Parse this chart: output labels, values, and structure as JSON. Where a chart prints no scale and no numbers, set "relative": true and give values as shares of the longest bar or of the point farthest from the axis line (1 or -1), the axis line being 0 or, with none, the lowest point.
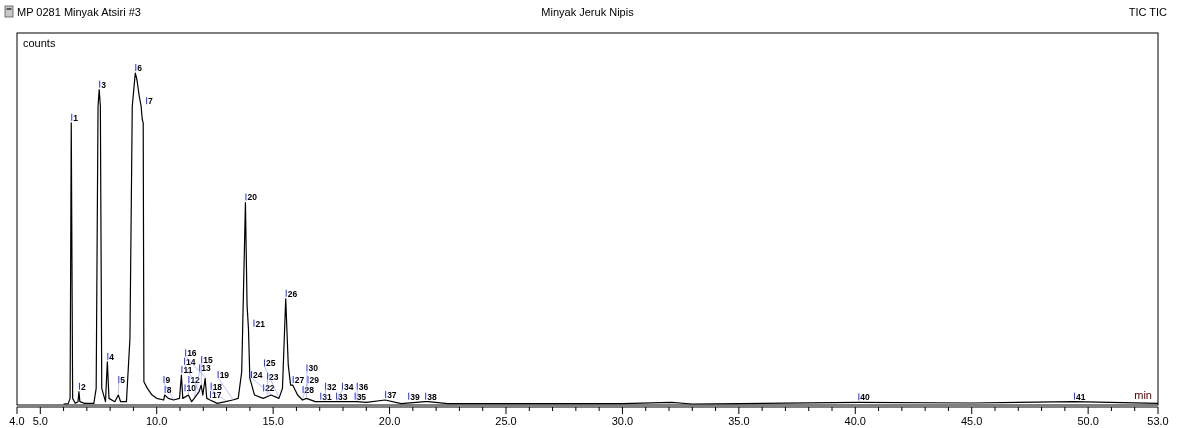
{
  "chart_data": {
    "type": "line",
    "title": "Minyak Jeruk Nipis",
    "xlabel": "min",
    "ylabel": "counts",
    "relative": true,
    "grid": false,
    "marker": "none",
    "line_style": "solid",
    "tick_labels": "x",
    "xlim": [
      4,
      53
    ],
    "xticks": [
      {
        "value": 4,
        "label": "4.0"
      },
      {
        "value": 5,
        "label": "5.0"
      },
      {
        "value": 10,
        "label": "10.0"
      },
      {
        "value": 15,
        "label": "15.0"
      },
      {
        "value": 20,
        "label": "20.0"
      },
      {
        "value": 25,
        "label": "25.0"
      },
      {
        "value": 30,
        "label": "30.0"
      },
      {
        "value": 35,
        "label": "35.0"
      },
      {
        "value": 40,
        "label": "40.0"
      },
      {
        "value": 45,
        "label": "45.0"
      },
      {
        "value": 50,
        "label": "50.0"
      },
      {
        "value": 53,
        "label": "53.0"
      },
      {
        "value": 6,
        "label": null
      },
      {
        "value": 7,
        "label": null
      },
      {
        "value": 8,
        "label": null
      },
      {
        "value": 9,
        "label": null
      },
      {
        "value": 11,
        "label": null
      },
      {
        "value": 12,
        "label": null
      },
      {
        "value": 13,
        "label": null
      },
      {
        "value": 14,
        "label": null
      },
      {
        "value": 16,
        "label": null
      },
      {
        "value": 17,
        "label": null
      },
      {
        "value": 18,
        "label": null
      },
      {
        "value": 19,
        "label": null
      },
      {
        "value": 21,
        "label": null
      },
      {
        "value": 22,
        "label": null
      },
      {
        "value": 23,
        "label": null
      },
      {
        "value": 24,
        "label": null
      },
      {
        "value": 26,
        "label": null
      },
      {
        "value": 27,
        "label": null
      },
      {
        "value": 28,
        "label": null
      },
      {
        "value": 29,
        "label": null
      },
      {
        "value": 31,
        "label": null
      },
      {
        "value": 32,
        "label": null
      },
      {
        "value": 33,
        "label": null
      },
      {
        "value": 34,
        "label": null
      },
      {
        "value": 36,
        "label": null
      },
      {
        "value": 37,
        "label": null
      },
      {
        "value": 38,
        "label": null
      },
      {
        "value": 39,
        "label": null
      },
      {
        "value": 41,
        "label": null
      },
      {
        "value": 42,
        "label": null
      },
      {
        "value": 43,
        "label": null
      },
      {
        "value": 44,
        "label": null
      },
      {
        "value": 46,
        "label": null
      },
      {
        "value": 47,
        "label": null
      },
      {
        "value": 48,
        "label": null
      },
      {
        "value": 49,
        "label": null
      },
      {
        "value": 51,
        "label": null
      },
      {
        "value": 52,
        "label": null
      }
    ],
    "x": [
      6.0,
      6.2,
      6.28,
      6.33,
      6.39,
      6.5,
      6.62,
      6.66,
      6.7,
      6.9,
      7.3,
      7.4,
      7.48,
      7.53,
      7.58,
      7.64,
      7.8,
      7.88,
      7.95,
      8.2,
      8.35,
      8.45,
      8.7,
      8.85,
      8.95,
      9.08,
      9.15,
      9.25,
      9.33,
      9.38,
      9.42,
      9.45,
      9.6,
      9.8,
      10.0,
      10.3,
      10.34,
      10.5,
      10.72,
      10.98,
      11.06,
      11.12,
      11.36,
      11.5,
      11.61,
      11.82,
      11.91,
      11.98,
      12.08,
      12.15,
      12.29,
      12.6,
      12.96,
      13.26,
      13.5,
      13.65,
      13.81,
      13.88,
      13.94,
      14.0,
      14.2,
      14.57,
      14.74,
      14.91,
      15.25,
      15.4,
      15.54,
      15.65,
      15.75,
      15.84,
      16.05,
      16.26,
      16.43,
      16.81,
      17.23,
      17.74,
      18.5,
      18.59,
      19.0,
      19.81,
      20.5,
      21.53,
      21.66,
      22.5,
      25,
      30,
      32.1,
      33,
      35,
      40.13,
      45,
      49.39,
      53
    ],
    "series": [
      {
        "color": "#000000",
        "values": [
          0.003,
          0.004,
          0.02,
          0.85,
          0.02,
          0.005,
          0.01,
          0.04,
          0.01,
          0.005,
          0.005,
          0.05,
          0.9,
          0.95,
          0.9,
          0.05,
          0.01,
          0.13,
          0.02,
          0.01,
          0.03,
          0.01,
          0.01,
          0.2,
          0.9,
          1,
          0.98,
          0.93,
          0.9,
          0.86,
          0.85,
          0.07,
          0.05,
          0.03,
          0.02,
          0.015,
          0.03,
          0.02,
          0.015,
          0.02,
          0.09,
          0.02,
          0.03,
          0.01,
          0.02,
          0.04,
          0.06,
          0.03,
          0.08,
          0.02,
          0.015,
          0.005,
          0.01,
          0.015,
          0.02,
          0.1,
          0.61,
          0.3,
          0.23,
          0.08,
          0.03,
          0.02,
          0.025,
          0.03,
          0.02,
          0.05,
          0.32,
          0.12,
          0.06,
          0.06,
          0.03,
          0.015,
          0.02,
          0.01,
          0.01,
          0.01,
          0.01,
          0.01,
          0.008,
          0.015,
          0.004,
          0.01,
          0.01,
          0.004,
          0.004,
          0.004,
          0.008,
          0.003,
          0.004,
          0.008,
          0.006,
          0.01,
          0.005
        ]
      }
    ],
    "annotations": [
      "MP 0281 Minyak Atsiri #3",
      "TIC TIC",
      {
        "text": "1",
        "x": 6.33,
        "y": 0.85
      },
      {
        "text": "2",
        "x": 6.66,
        "y": 0.04
      },
      {
        "text": "3",
        "x": 7.53,
        "y": 0.95
      },
      {
        "text": "4",
        "x": 7.88,
        "y": 0.13
      },
      {
        "text": "5",
        "x": 8.35,
        "y": 0.03
      },
      {
        "text": "6",
        "x": 9.08,
        "y": 1
      },
      {
        "text": "7",
        "x": 9.33,
        "y": 0.9
      },
      {
        "text": "8",
        "x": 10.34,
        "y": 0.03
      },
      {
        "text": "9",
        "x": 10.72,
        "y": 0.015
      },
      {
        "text": "10",
        "x": 10.98,
        "y": 0.02
      },
      {
        "text": "11",
        "x": 11.06,
        "y": 0.09
      },
      {
        "text": "12",
        "x": 11.36,
        "y": 0.03
      },
      {
        "text": "13",
        "x": 11.61,
        "y": 0.02
      },
      {
        "text": "14",
        "x": 11.82,
        "y": 0.04
      },
      {
        "text": "15",
        "x": 11.91,
        "y": 0.06
      },
      {
        "text": "16",
        "x": 12.08,
        "y": 0.08
      },
      {
        "text": "17",
        "x": 12.29,
        "y": 0.015
      },
      {
        "text": "18",
        "x": 12.96,
        "y": 0.01
      },
      {
        "text": "19",
        "x": 13.26,
        "y": 0.015
      },
      {
        "text": "20",
        "x": 13.81,
        "y": 0.61
      },
      {
        "text": "21",
        "x": 13.94,
        "y": 0.23
      },
      {
        "text": "22",
        "x": 14.57,
        "y": 0.02
      },
      {
        "text": "23",
        "x": 14.74,
        "y": 0.025
      },
      {
        "text": "24",
        "x": 14.91,
        "y": 0.03
      },
      {
        "text": "25",
        "x": 15.25,
        "y": 0.02
      },
      {
        "text": "26",
        "x": 15.54,
        "y": 0.32
      },
      {
        "text": "27",
        "x": 15.84,
        "y": 0.06
      },
      {
        "text": "28",
        "x": 16.05,
        "y": 0.03
      },
      {
        "text": "29",
        "x": 16.26,
        "y": 0.015
      },
      {
        "text": "30",
        "x": 16.43,
        "y": 0.02
      },
      {
        "text": "31",
        "x": 16.81,
        "y": 0.01
      },
      {
        "text": "32",
        "x": 17.23,
        "y": 0.01
      },
      {
        "text": "33",
        "x": 17.49,
        "y": 0.01
      },
      {
        "text": "34",
        "x": 17.74,
        "y": 0.01
      },
      {
        "text": "35",
        "x": 18.5,
        "y": 0.01
      },
      {
        "text": "36",
        "x": 18.59,
        "y": 0.01
      },
      {
        "text": "37",
        "x": 19.81,
        "y": 0.015
      },
      {
        "text": "38",
        "x": 21.53,
        "y": 0.01
      },
      {
        "text": "39",
        "x": 21.66,
        "y": 0.01
      },
      {
        "text": "40",
        "x": 40.13,
        "y": 0.008
      },
      {
        "text": "41",
        "x": 49.39,
        "y": 0.01
      }
    ]
  }
}
